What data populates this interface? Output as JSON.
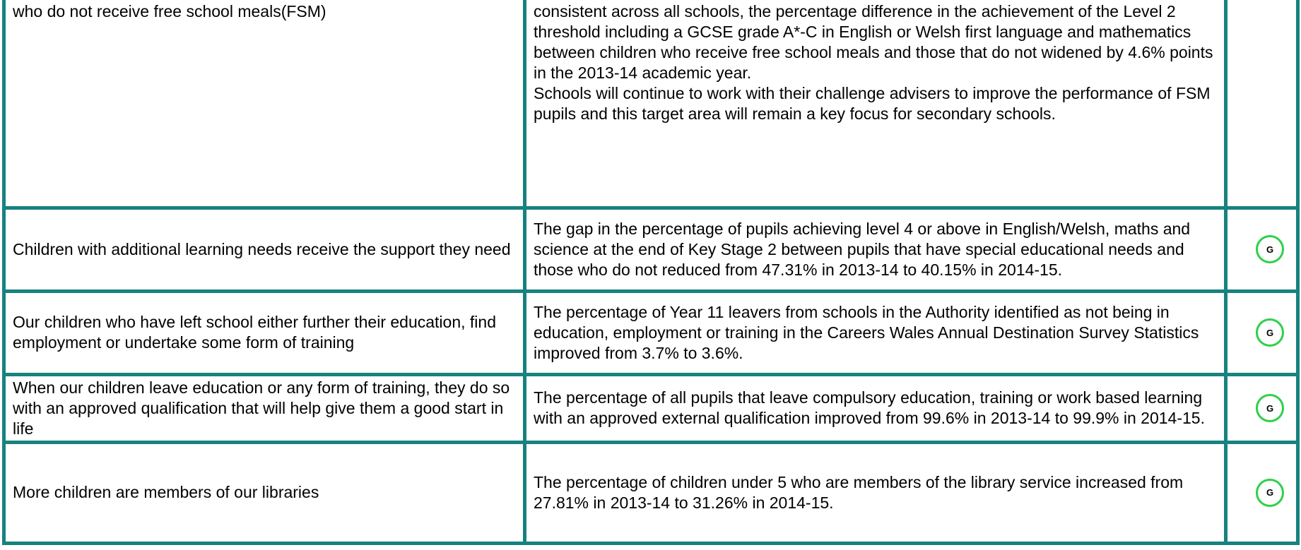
{
  "table": {
    "rows": [
      {
        "outcome": "who do not receive free school meals(FSM)",
        "progress": [
          "consistent across all schools, the percentage difference in the achievement of the Level 2 threshold including a GCSE grade A*-C in English or Welsh first language and mathematics between children who receive free school meals and those that do not widened by 4.6% points in the 2013-14 academic year.",
          "Schools will continue to work with their challenge advisers to improve the performance of FSM pupils and this target area will remain a key focus for secondary schools."
        ],
        "rating": null
      },
      {
        "outcome": "Children with additional learning needs receive the support they need",
        "progress": [
          "The gap in the percentage of pupils achieving level 4 or above in English/Welsh, maths and science at the end of Key Stage 2 between pupils that have special educational needs and those who do not reduced from 47.31% in 2013-14 to 40.15% in 2014-15."
        ],
        "rating": "G"
      },
      {
        "outcome": "Our children who have left school either further their education, find employment or undertake some form of training",
        "progress": [
          "The percentage of Year 11 leavers from schools in the Authority identified as not being in education, employment or training in the Careers Wales Annual Destination Survey Statistics improved from 3.7% to 3.6%."
        ],
        "rating": "G"
      },
      {
        "outcome": "When our children leave education or any form of training, they do so with an approved qualification that will help give them a good start in life",
        "progress": [
          "The percentage of all pupils that leave compulsory education, training or work based learning with an approved external qualification improved from 99.6% in 2013-14 to 99.9% in 2014-15."
        ],
        "rating": "G"
      },
      {
        "outcome": "More children are members of our libraries",
        "progress": [
          "The percentage of children under 5 who are members of the library service increased from 27.81% in 2013-14 to 31.26% in 2014-15."
        ],
        "rating": "G"
      }
    ]
  }
}
